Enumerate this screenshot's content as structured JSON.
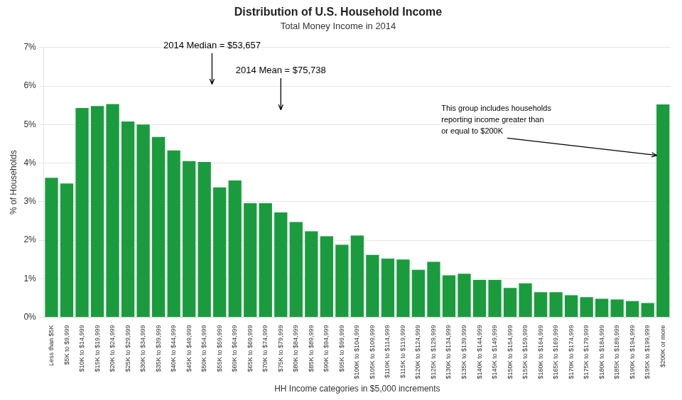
{
  "chart_data": {
    "type": "bar",
    "title": "Distribution of U.S. Household Income",
    "subtitle": "Total Money Income in 2014",
    "xlabel": "HH Income categories in $5,000 increments",
    "ylabel": "% of Households",
    "color": "#1a9c3e",
    "categories": [
      "Less than $5K",
      "$5K to $9,999",
      "$10K to $14,999",
      "$15K to $19,999",
      "$20K to $24,999",
      "$25K to $29,999",
      "$30K to $34,999",
      "$35K to $39,999",
      "$40K to $44,999",
      "$45K to $49,999",
      "$50K to $54,999",
      "$55K to $59,999",
      "$60K to $64,999",
      "$65K to $69,999",
      "$70K to $74,999",
      "$75K to $79,999",
      "$80K to $84,999",
      "$85K to $89,999",
      "$90K to $94,999",
      "$95K to $99,999",
      "$100K to $104,999",
      "$105K to $109,999",
      "$110K to $114,999",
      "$115K to $119,999",
      "$120K to $124,999",
      "$125K to $129,999",
      "$130K to $134,999",
      "$135K to $139,999",
      "$140K to $144,999",
      "$145K to $149,999",
      "$150K to $154,999",
      "$155K to $159,999",
      "$160K to $164,999",
      "$165K to $169,999",
      "$170K to $174,999",
      "$175K to $179,999",
      "$180K to $184,999",
      "$185K to $189,999",
      "$190K to $194,999",
      "$195K to $199,999",
      "$200K or more"
    ],
    "values": [
      3.62,
      3.47,
      5.43,
      5.48,
      5.53,
      5.08,
      5.0,
      4.68,
      4.33,
      4.05,
      4.03,
      3.37,
      3.55,
      2.96,
      2.96,
      2.72,
      2.47,
      2.23,
      2.1,
      1.88,
      2.12,
      1.62,
      1.52,
      1.5,
      1.23,
      1.44,
      1.09,
      1.13,
      0.97,
      0.97,
      0.76,
      0.88,
      0.65,
      0.65,
      0.57,
      0.52,
      0.48,
      0.46,
      0.42,
      0.37,
      5.52
    ],
    "ylim": [
      0,
      7
    ],
    "yticks": [
      {
        "value": 0,
        "label": "0%"
      },
      {
        "value": 1,
        "label": "1%"
      },
      {
        "value": 2,
        "label": "2%"
      },
      {
        "value": 3,
        "label": "3%"
      },
      {
        "value": 4,
        "label": "4%"
      },
      {
        "value": 5,
        "label": "5%"
      },
      {
        "value": 6,
        "label": "6%"
      },
      {
        "value": 7,
        "label": "7%"
      }
    ],
    "grid": true,
    "annotations": [
      "2014 Median = $53,657",
      "2014 Mean = $75,738",
      "This group includes households\nreporting income greater than\nor equal to $200K"
    ]
  }
}
